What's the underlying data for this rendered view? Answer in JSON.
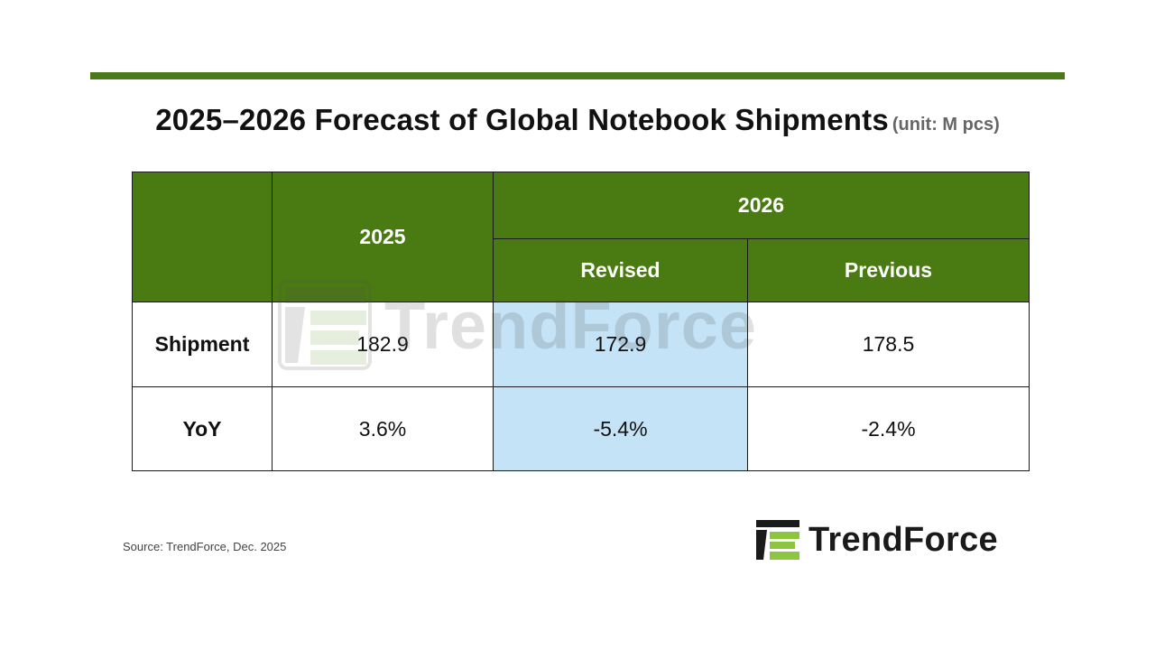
{
  "title": "2025–2026 Forecast of Global Notebook Shipments",
  "unit": "(unit: M pcs)",
  "table": {
    "header_2025": "2025",
    "header_2026": "2026",
    "header_revised": "Revised",
    "header_previous": "Previous",
    "rows": [
      {
        "label": "Shipment",
        "y2025": "182.9",
        "revised": "172.9",
        "previous": "178.5"
      },
      {
        "label": "YoY",
        "y2025": "3.6%",
        "revised": "-5.4%",
        "previous": "-2.4%"
      }
    ]
  },
  "source": "Source: TrendForce, Dec. 2025",
  "brand": "TrendForce",
  "colors": {
    "header_green": "#4a7a12",
    "accent_bar": "#4a7a1c",
    "highlight_blue": "#c4e3f6",
    "logo_lime": "#8cc63f"
  }
}
